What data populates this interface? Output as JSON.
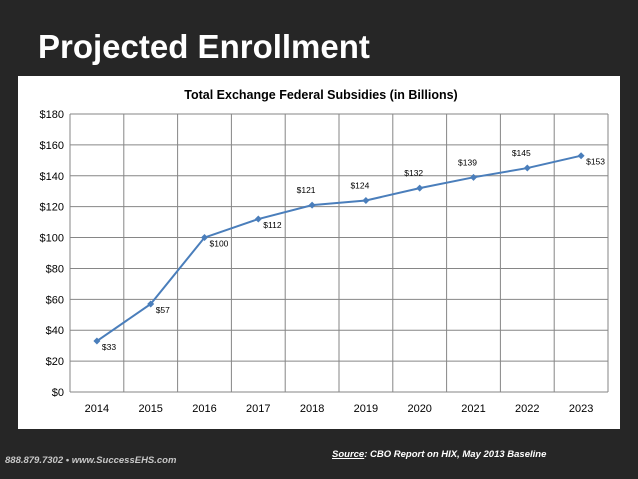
{
  "slide": {
    "title": "Projected Enrollment",
    "footer_contact": "888.879.7302 • www.SuccessEHS.com",
    "source_label": "Source",
    "source_text": ": CBO Report on HIX, May 2013 Baseline"
  },
  "colors": {
    "background": "#262626",
    "panel": "#ffffff",
    "line": "#4a7ebb",
    "grid": "#868686",
    "footer_text": "#c8c8c8"
  },
  "chart_data": {
    "type": "line",
    "title": "Total Exchange  Federal Subsidies (in Billions)",
    "xlabel": "",
    "ylabel": "",
    "categories": [
      "2014",
      "2015",
      "2016",
      "2017",
      "2018",
      "2019",
      "2020",
      "2021",
      "2022",
      "2023"
    ],
    "series": [
      {
        "values": [
          33,
          57,
          100,
          112,
          121,
          124,
          132,
          139,
          145,
          153
        ],
        "labels": [
          "$33",
          "$57",
          "$100",
          "$112",
          "$121",
          "$124",
          "$132",
          "$139",
          "$145",
          "$153"
        ]
      }
    ],
    "ylim": [
      0,
      180
    ],
    "yticks": [
      0,
      20,
      40,
      60,
      80,
      100,
      120,
      140,
      160,
      180
    ],
    "ytick_labels": [
      "$0",
      "$20",
      "$40",
      "$60",
      "$80",
      "$100",
      "$120",
      "$140",
      "$160",
      "$180"
    ],
    "grid": true,
    "legend": "none"
  }
}
